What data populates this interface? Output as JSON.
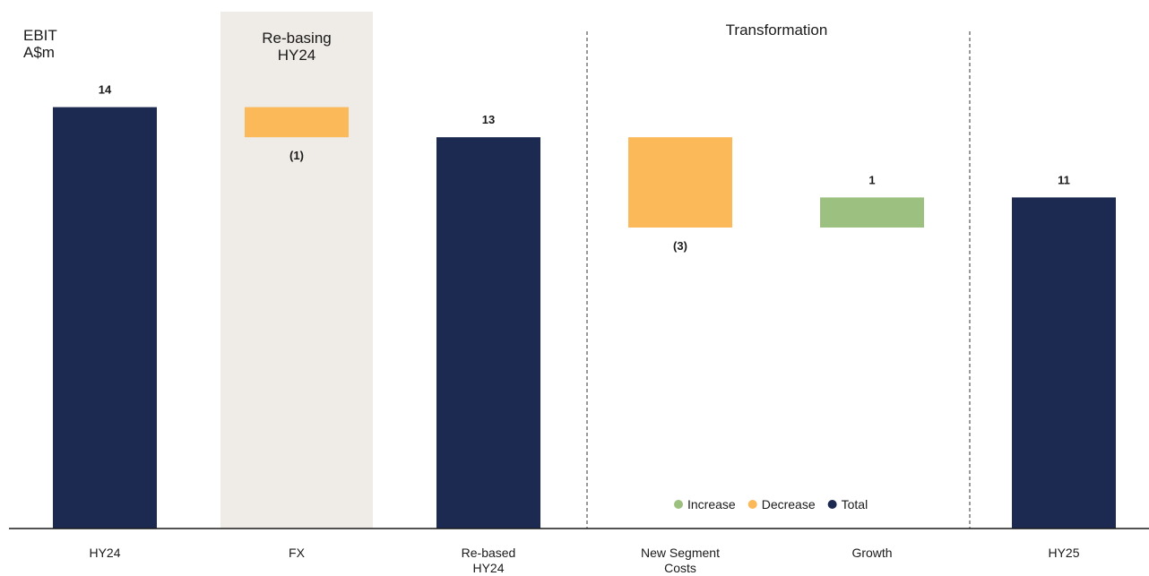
{
  "chart_data": {
    "type": "waterfall",
    "ylabel": "EBIT\nA$m",
    "annotations": [
      "Re-basing\nHY24",
      "Transformation"
    ],
    "categories": [
      "HY24",
      "FX",
      "Re-based\nHY24",
      "New Segment\nCosts",
      "Growth",
      "HY25"
    ],
    "values": [
      14,
      -1,
      13,
      -3,
      1,
      11
    ],
    "value_labels": [
      "14",
      "(1)",
      "13",
      "(3)",
      "1",
      "11"
    ],
    "bar_types": [
      "total",
      "delta",
      "total",
      "delta",
      "delta",
      "total"
    ],
    "legend": [
      {
        "name": "Increase",
        "color": "#9bc07f"
      },
      {
        "name": "Decrease",
        "color": "#fbb95a"
      },
      {
        "name": "Total",
        "color": "#1c2951"
      }
    ],
    "ylim": [
      0,
      17.5
    ]
  }
}
